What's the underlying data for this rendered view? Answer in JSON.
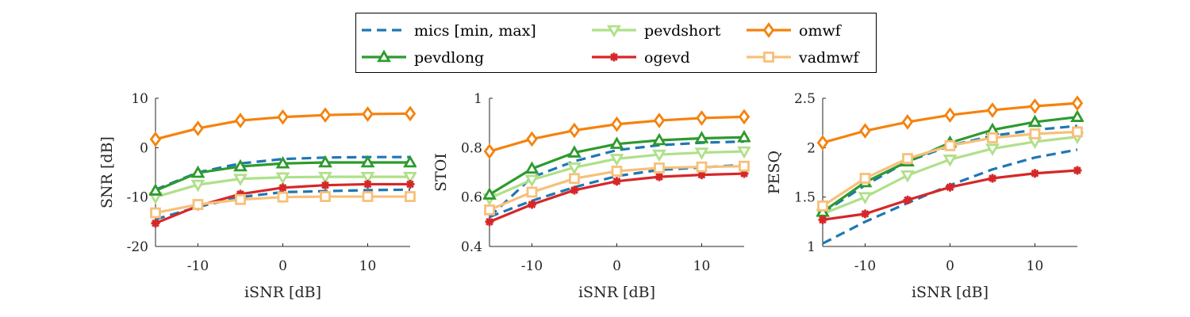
{
  "chart_data": {
    "type": "line",
    "x": [
      -15,
      -10,
      -5,
      0,
      5,
      10,
      15
    ],
    "xtick_labels": [
      "-10",
      "0",
      "10"
    ],
    "xlim": [
      -15,
      15
    ],
    "legend": {
      "placement": "top-center",
      "entries": [
        {
          "name": "mics [min, max]",
          "color": "#1f77b4",
          "style": "dashed",
          "marker": "none"
        },
        {
          "name": "pevdshort",
          "color": "#b0e08a",
          "style": "solid",
          "marker": "triangle-down"
        },
        {
          "name": "omwf",
          "color": "#f5820d",
          "style": "solid",
          "marker": "diamond"
        },
        {
          "name": "pevdlong",
          "color": "#2e9a2e",
          "style": "solid",
          "marker": "triangle-up"
        },
        {
          "name": "ogevd",
          "color": "#d62728",
          "style": "solid",
          "marker": "star"
        },
        {
          "name": "vadmwf",
          "color": "#f7c07a",
          "style": "solid",
          "marker": "square"
        }
      ]
    },
    "panels": [
      {
        "xlabel": "iSNR [dB]",
        "ylabel": "SNR [dB]",
        "ylim": [
          -20,
          10
        ],
        "yticks": [
          "-20",
          "-10",
          "0",
          "10"
        ],
        "series": [
          {
            "name": "mics [min, max]",
            "role": "max",
            "values": [
              -8.5,
              -5.0,
              -3.2,
              -2.3,
              -2.0,
              -1.9,
              -1.9
            ]
          },
          {
            "name": "mics [min, max]",
            "role": "min",
            "values": [
              -14.5,
              -12.0,
              -10.0,
              -9.0,
              -8.8,
              -8.6,
              -8.5
            ]
          },
          {
            "name": "pevdshort",
            "values": [
              -10.0,
              -7.5,
              -6.3,
              -6.0,
              -5.9,
              -5.9,
              -5.9
            ]
          },
          {
            "name": "pevdlong",
            "values": [
              -8.7,
              -5.1,
              -3.8,
              -3.2,
              -3.0,
              -3.0,
              -3.0
            ]
          },
          {
            "name": "ogevd",
            "values": [
              -15.3,
              -11.8,
              -9.4,
              -8.1,
              -7.6,
              -7.4,
              -7.4
            ]
          },
          {
            "name": "vadmwf",
            "values": [
              -13.2,
              -11.5,
              -10.5,
              -10.0,
              -9.9,
              -9.9,
              -9.9
            ]
          },
          {
            "name": "omwf",
            "values": [
              1.7,
              3.9,
              5.5,
              6.2,
              6.6,
              6.8,
              6.9
            ]
          }
        ]
      },
      {
        "xlabel": "iSNR [dB]",
        "ylabel": "STOI",
        "ylim": [
          0.4,
          1
        ],
        "yticks": [
          "0.4",
          "0.6",
          "0.8",
          "1"
        ],
        "series": [
          {
            "name": "mics [min, max]",
            "role": "max",
            "values": [
              0.52,
              0.68,
              0.745,
              0.79,
              0.81,
              0.82,
              0.825
            ]
          },
          {
            "name": "mics [min, max]",
            "role": "min",
            "values": [
              0.52,
              0.585,
              0.64,
              0.685,
              0.71,
              0.72,
              0.73
            ]
          },
          {
            "name": "pevdshort",
            "values": [
              0.595,
              0.67,
              0.72,
              0.755,
              0.772,
              0.78,
              0.785
            ]
          },
          {
            "name": "pevdlong",
            "values": [
              0.61,
              0.715,
              0.78,
              0.815,
              0.83,
              0.838,
              0.842
            ]
          },
          {
            "name": "ogevd",
            "values": [
              0.5,
              0.57,
              0.628,
              0.664,
              0.682,
              0.69,
              0.695
            ]
          },
          {
            "name": "vadmwf",
            "values": [
              0.548,
              0.62,
              0.675,
              0.705,
              0.718,
              0.722,
              0.725
            ]
          },
          {
            "name": "omwf",
            "values": [
              0.785,
              0.835,
              0.87,
              0.895,
              0.91,
              0.92,
              0.925
            ]
          }
        ]
      },
      {
        "xlabel": "iSNR [dB]",
        "ylabel": "PESQ",
        "ylim": [
          1,
          2.5
        ],
        "yticks": [
          "1",
          "1.5",
          "2",
          "2.5"
        ],
        "series": [
          {
            "name": "mics [min, max]",
            "role": "max",
            "values": [
              1.34,
              1.62,
              1.86,
              2.02,
              2.12,
              2.18,
              2.22
            ]
          },
          {
            "name": "mics [min, max]",
            "role": "min",
            "values": [
              1.03,
              1.25,
              1.44,
              1.62,
              1.78,
              1.9,
              1.98
            ]
          },
          {
            "name": "pevdshort",
            "values": [
              1.33,
              1.5,
              1.72,
              1.88,
              1.99,
              2.06,
              2.11
            ]
          },
          {
            "name": "pevdlong",
            "values": [
              1.35,
              1.65,
              1.86,
              2.05,
              2.18,
              2.26,
              2.31
            ]
          },
          {
            "name": "ogevd",
            "values": [
              1.27,
              1.33,
              1.47,
              1.6,
              1.69,
              1.74,
              1.77
            ]
          },
          {
            "name": "vadmwf",
            "values": [
              1.41,
              1.69,
              1.89,
              2.02,
              2.1,
              2.14,
              2.16
            ]
          },
          {
            "name": "omwf",
            "values": [
              2.05,
              2.17,
              2.26,
              2.33,
              2.38,
              2.42,
              2.45
            ]
          }
        ]
      }
    ]
  }
}
